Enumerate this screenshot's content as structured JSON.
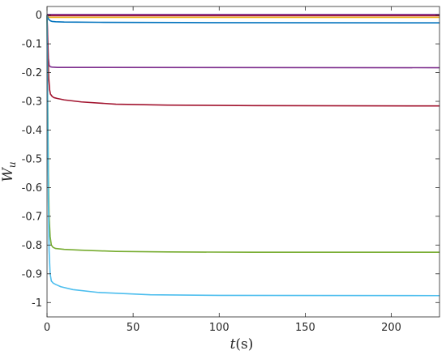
{
  "chart_data": {
    "type": "line",
    "title": "",
    "xlabel": {
      "main": "t",
      "unit": "(s)"
    },
    "ylabel": {
      "main": "W",
      "sub": "u"
    },
    "xlim": [
      0,
      228
    ],
    "ylim": [
      -1.05,
      0.03
    ],
    "xticks": [
      0,
      50,
      100,
      150,
      200
    ],
    "yticks": [
      0,
      -0.1,
      -0.2,
      -0.3,
      -0.4,
      -0.5,
      -0.6,
      -0.7,
      -0.8,
      -0.9,
      -1
    ],
    "x_tick_labels": [
      "0",
      "50",
      "100",
      "150",
      "200"
    ],
    "y_tick_labels": [
      "0",
      "-0.1",
      "-0.2",
      "-0.3",
      "-0.4",
      "-0.5",
      "-0.6",
      "-0.7",
      "-0.8",
      "-0.9",
      "-1"
    ],
    "grid": false,
    "legend": "none",
    "series": [
      {
        "color": "#EDB120",
        "x": [
          0,
          0.3,
          1,
          228
        ],
        "y": [
          0,
          -0.005,
          -0.008,
          -0.008
        ]
      },
      {
        "color": "#A2142F",
        "x": [
          0,
          228
        ],
        "y": [
          -0.002,
          -0.002
        ]
      },
      {
        "color": "#7E2F8E",
        "x": [
          0,
          228
        ],
        "y": [
          0.002,
          0.002
        ]
      },
      {
        "color": "#0072BD",
        "x": [
          0,
          0.5,
          1,
          2,
          3,
          5,
          10,
          30,
          80,
          228
        ],
        "y": [
          0,
          -0.01,
          -0.015,
          -0.02,
          -0.022,
          -0.023,
          -0.024,
          -0.025,
          -0.026,
          -0.027
        ]
      },
      {
        "color": "#7E2F8E",
        "x": [
          0,
          0.4,
          0.8,
          1.2,
          2,
          3,
          6,
          20,
          228
        ],
        "y": [
          0,
          -0.08,
          -0.15,
          -0.175,
          -0.18,
          -0.181,
          -0.182,
          -0.182,
          -0.183
        ]
      },
      {
        "color": "#A2142F",
        "x": [
          0,
          0.5,
          1,
          1.5,
          2,
          3,
          4,
          6,
          10,
          20,
          40,
          70,
          120,
          228
        ],
        "y": [
          0,
          -0.13,
          -0.22,
          -0.26,
          -0.275,
          -0.283,
          -0.287,
          -0.29,
          -0.295,
          -0.302,
          -0.31,
          -0.313,
          -0.315,
          -0.316
        ]
      },
      {
        "color": "#77AC30",
        "x": [
          0,
          0.4,
          0.8,
          1.2,
          1.8,
          2.5,
          3.5,
          5,
          10,
          20,
          40,
          70,
          120,
          228
        ],
        "y": [
          0,
          -0.3,
          -0.55,
          -0.7,
          -0.77,
          -0.8,
          -0.808,
          -0.812,
          -0.815,
          -0.818,
          -0.822,
          -0.824,
          -0.825,
          -0.825
        ]
      },
      {
        "color": "#4DBEEE",
        "x": [
          0,
          0.4,
          0.8,
          1.2,
          1.8,
          2.5,
          3.5,
          5,
          8,
          15,
          30,
          60,
          100,
          228
        ],
        "y": [
          0,
          -0.35,
          -0.65,
          -0.82,
          -0.9,
          -0.925,
          -0.932,
          -0.937,
          -0.945,
          -0.955,
          -0.965,
          -0.973,
          -0.975,
          -0.976
        ]
      }
    ]
  }
}
